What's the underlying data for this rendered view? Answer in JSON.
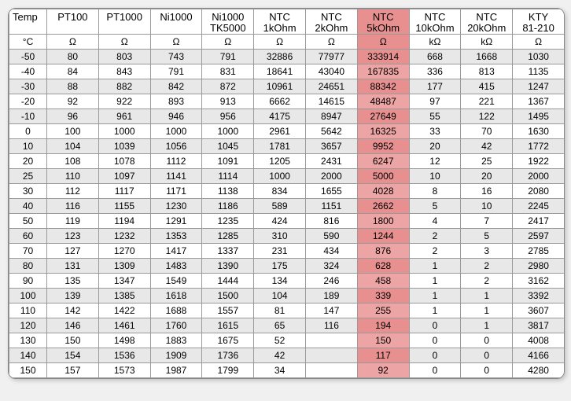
{
  "table": {
    "header_row1": [
      "Temp",
      "PT100",
      "PT1000",
      "Ni1000",
      "Ni1000 TK5000",
      "NTC 1kOhm",
      "NTC 2kOhm",
      "NTC 5kOhm",
      "NTC 10kOhm",
      "NTC 20kOhm",
      "KTY 81-210"
    ],
    "header_row2": [
      "°C",
      "Ω",
      "Ω",
      "Ω",
      "Ω",
      "Ω",
      "Ω",
      "Ω",
      "kΩ",
      "kΩ",
      "Ω"
    ],
    "highlight_col_index": 7,
    "highlight_color_even": "#e89090",
    "highlight_color_odd": "#eda4a4",
    "row_bg_even": "#e8e8e8",
    "row_bg_odd": "#ffffff",
    "border_color": "#999999",
    "font_size_body": 12,
    "font_size_header": 13,
    "rows": [
      [
        "-50",
        "80",
        "803",
        "743",
        "791",
        "32886",
        "77977",
        "333914",
        "668",
        "1668",
        "1030"
      ],
      [
        "-40",
        "84",
        "843",
        "791",
        "831",
        "18641",
        "43040",
        "167835",
        "336",
        "813",
        "1135"
      ],
      [
        "-30",
        "88",
        "882",
        "842",
        "872",
        "10961",
        "24651",
        "88342",
        "177",
        "415",
        "1247"
      ],
      [
        "-20",
        "92",
        "922",
        "893",
        "913",
        "6662",
        "14615",
        "48487",
        "97",
        "221",
        "1367"
      ],
      [
        "-10",
        "96",
        "961",
        "946",
        "956",
        "4175",
        "8947",
        "27649",
        "55",
        "122",
        "1495"
      ],
      [
        "0",
        "100",
        "1000",
        "1000",
        "1000",
        "2961",
        "5642",
        "16325",
        "33",
        "70",
        "1630"
      ],
      [
        "10",
        "104",
        "1039",
        "1056",
        "1045",
        "1781",
        "3657",
        "9952",
        "20",
        "42",
        "1772"
      ],
      [
        "20",
        "108",
        "1078",
        "1112",
        "1091",
        "1205",
        "2431",
        "6247",
        "12",
        "25",
        "1922"
      ],
      [
        "25",
        "110",
        "1097",
        "1141",
        "1114",
        "1000",
        "2000",
        "5000",
        "10",
        "20",
        "2000"
      ],
      [
        "30",
        "112",
        "1117",
        "1171",
        "1138",
        "834",
        "1655",
        "4028",
        "8",
        "16",
        "2080"
      ],
      [
        "40",
        "116",
        "1155",
        "1230",
        "1186",
        "589",
        "1151",
        "2662",
        "5",
        "10",
        "2245"
      ],
      [
        "50",
        "119",
        "1194",
        "1291",
        "1235",
        "424",
        "816",
        "1800",
        "4",
        "7",
        "2417"
      ],
      [
        "60",
        "123",
        "1232",
        "1353",
        "1285",
        "310",
        "590",
        "1244",
        "2",
        "5",
        "2597"
      ],
      [
        "70",
        "127",
        "1270",
        "1417",
        "1337",
        "231",
        "434",
        "876",
        "2",
        "3",
        "2785"
      ],
      [
        "80",
        "131",
        "1309",
        "1483",
        "1390",
        "175",
        "324",
        "628",
        "1",
        "2",
        "2980"
      ],
      [
        "90",
        "135",
        "1347",
        "1549",
        "1444",
        "134",
        "246",
        "458",
        "1",
        "2",
        "3162"
      ],
      [
        "100",
        "139",
        "1385",
        "1618",
        "1500",
        "104",
        "189",
        "339",
        "1",
        "1",
        "3392"
      ],
      [
        "110",
        "142",
        "1422",
        "1688",
        "1557",
        "81",
        "147",
        "255",
        "1",
        "1",
        "3607"
      ],
      [
        "120",
        "146",
        "1461",
        "1760",
        "1615",
        "65",
        "116",
        "194",
        "0",
        "1",
        "3817"
      ],
      [
        "130",
        "150",
        "1498",
        "1883",
        "1675",
        "52",
        "",
        "150",
        "0",
        "0",
        "4008"
      ],
      [
        "140",
        "154",
        "1536",
        "1909",
        "1736",
        "42",
        "",
        "117",
        "0",
        "0",
        "4166"
      ],
      [
        "150",
        "157",
        "1573",
        "1987",
        "1799",
        "34",
        "",
        "92",
        "0",
        "0",
        "4280"
      ]
    ]
  }
}
